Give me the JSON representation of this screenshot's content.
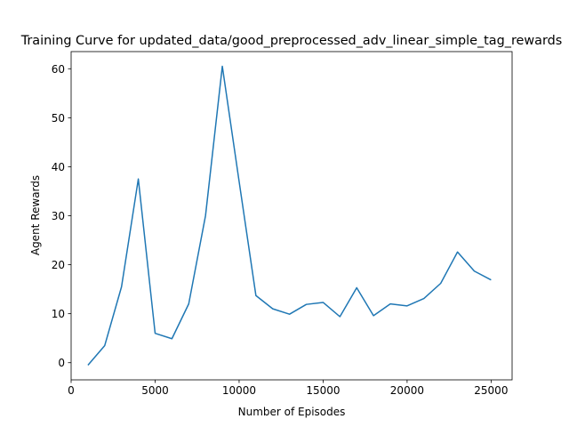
{
  "chart_data": {
    "type": "line",
    "title": "Training Curve for updated_data/good_preprocessed_adv_linear_simple_tag_rewards",
    "xlabel": "Number of Episodes",
    "ylabel": "Agent Rewards",
    "xlim": [
      0,
      26250
    ],
    "ylim": [
      -3.5,
      63.5
    ],
    "xticks": [
      0,
      5000,
      10000,
      15000,
      20000,
      25000
    ],
    "xtick_labels": [
      "0",
      "5000",
      "10000",
      "15000",
      "20000",
      "25000"
    ],
    "yticks": [
      0,
      10,
      20,
      30,
      40,
      50,
      60
    ],
    "ytick_labels": [
      "0",
      "10",
      "20",
      "30",
      "40",
      "50",
      "60"
    ],
    "grid": false,
    "series": [
      {
        "color": "#1f77b4",
        "x": [
          1000,
          2000,
          3000,
          4000,
          5000,
          6000,
          7000,
          8000,
          9000,
          10000,
          11000,
          12000,
          13000,
          14000,
          15000,
          16000,
          17000,
          18000,
          19000,
          20000,
          21000,
          22000,
          23000,
          24000,
          25000
        ],
        "y": [
          -0.5,
          3.5,
          15.5,
          37.5,
          6.0,
          4.9,
          12.0,
          30.0,
          60.5,
          37.0,
          13.7,
          11.0,
          9.9,
          11.9,
          12.3,
          9.4,
          15.3,
          9.6,
          12.0,
          11.6,
          13.1,
          16.2,
          22.6,
          18.7,
          16.9
        ]
      }
    ]
  }
}
